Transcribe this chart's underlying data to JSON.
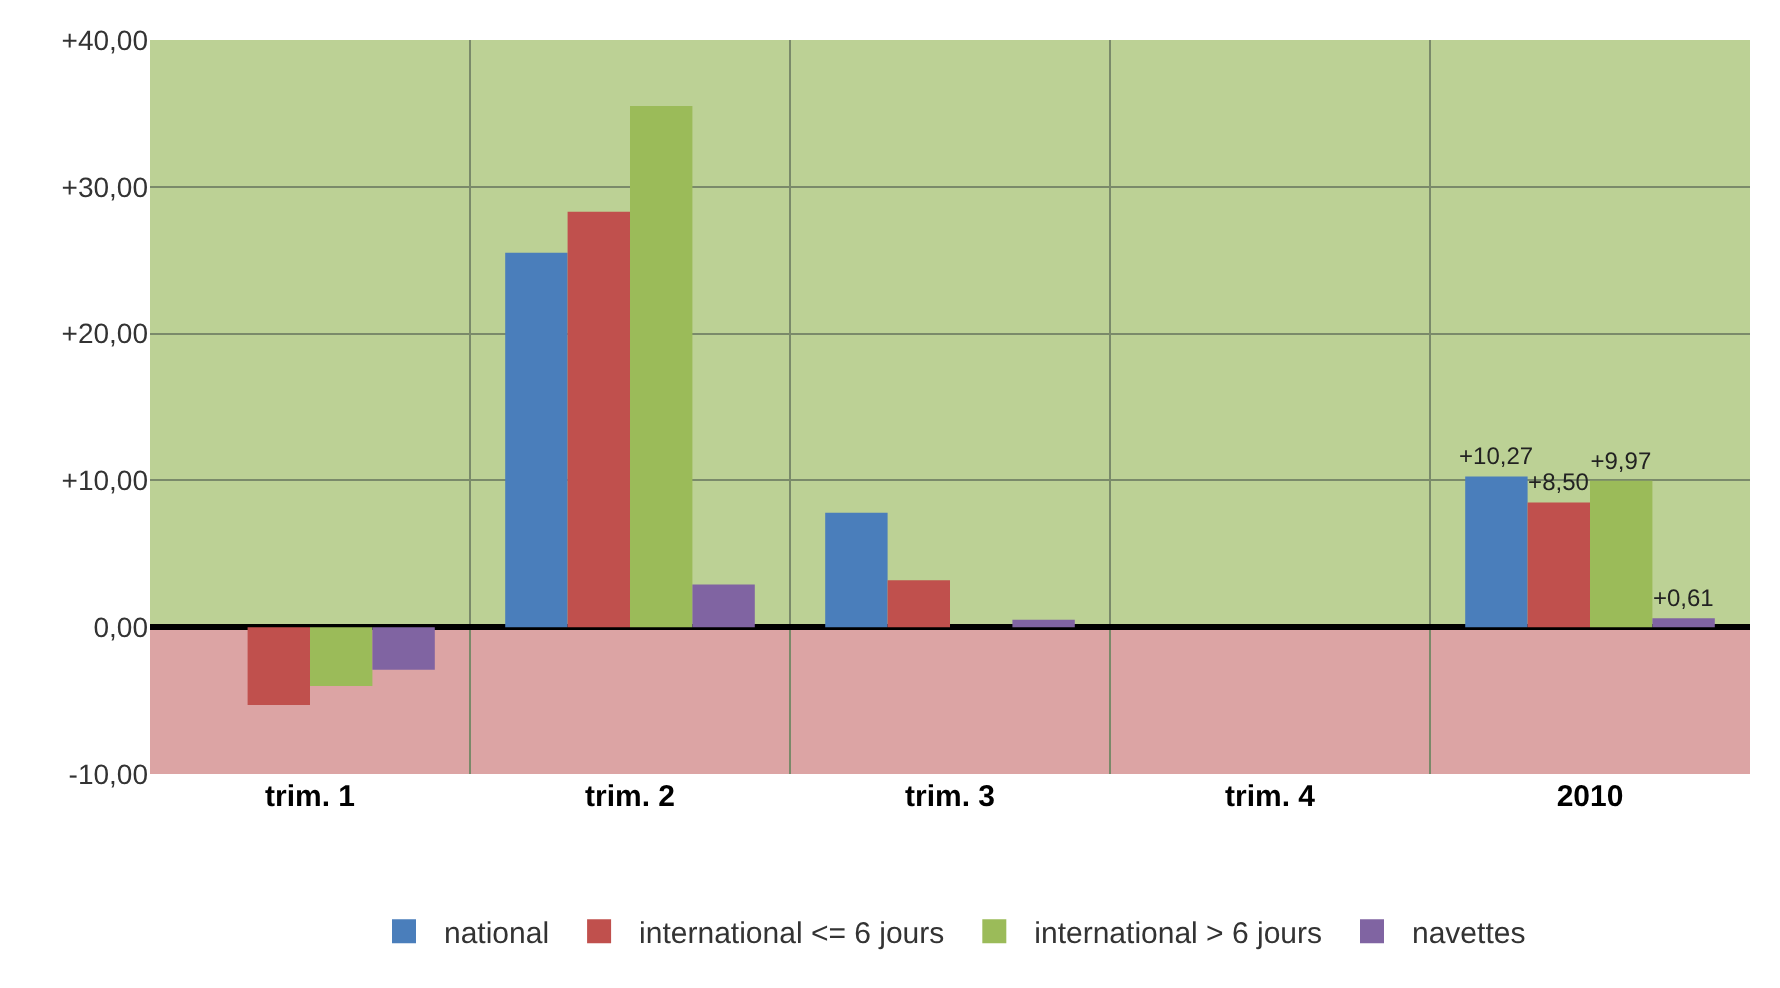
{
  "chart_data": {
    "type": "bar",
    "categories": [
      "trim. 1",
      "trim. 2",
      "trim. 3",
      "trim. 4",
      "2010"
    ],
    "series": [
      {
        "name": "national",
        "color": "#4a7ebb",
        "values": [
          null,
          25.5,
          7.8,
          null,
          10.27
        ],
        "value_labels": [
          null,
          null,
          null,
          null,
          "+10,27"
        ]
      },
      {
        "name": "international <= 6 jours",
        "color": "#c0504d",
        "values": [
          -5.3,
          28.3,
          3.2,
          null,
          8.5
        ],
        "value_labels": [
          null,
          null,
          null,
          null,
          "+8,50"
        ]
      },
      {
        "name": "international > 6 jours",
        "color": "#9bbb59",
        "values": [
          -4.0,
          35.5,
          null,
          null,
          9.97
        ],
        "value_labels": [
          null,
          null,
          null,
          null,
          "+9,97"
        ]
      },
      {
        "name": "navettes",
        "color": "#8064a2",
        "values": [
          -2.9,
          2.9,
          0.5,
          null,
          0.61
        ],
        "value_labels": [
          null,
          null,
          null,
          null,
          "+0,61"
        ]
      }
    ],
    "ylim": [
      -10,
      40
    ],
    "yticks": [
      {
        "value": -10,
        "label": "-10,00"
      },
      {
        "value": 0,
        "label": "0,00"
      },
      {
        "value": 10,
        "label": "+10,00"
      },
      {
        "value": 20,
        "label": "+20,00"
      },
      {
        "value": 30,
        "label": "+30,00"
      },
      {
        "value": 40,
        "label": "+40,00"
      }
    ],
    "bands": [
      {
        "axis": "y",
        "from": 0,
        "to": 40,
        "color": "#b5cc8a"
      },
      {
        "axis": "y",
        "from": -10,
        "to": 0,
        "color": "#d89a9a"
      }
    ],
    "grid": true,
    "legend": "bottom"
  }
}
